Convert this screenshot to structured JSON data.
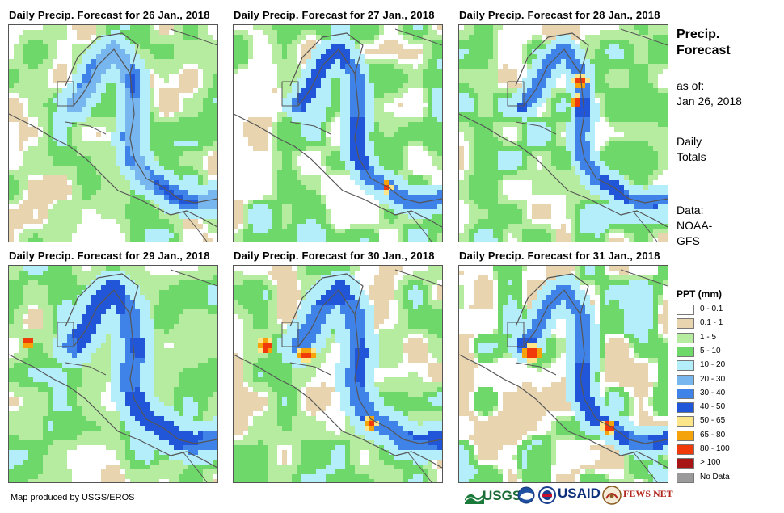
{
  "panels": [
    {
      "title": "Daily Precip. Forecast for 26 Jan., 2018"
    },
    {
      "title": "Daily Precip. Forecast for 27 Jan., 2018"
    },
    {
      "title": "Daily Precip. Forecast for 28 Jan., 2018"
    },
    {
      "title": "Daily Precip. Forecast for 29 Jan., 2018"
    },
    {
      "title": "Daily Precip. Forecast for 30 Jan., 2018"
    },
    {
      "title": "Daily Precip. Forecast for 31 Jan., 2018"
    }
  ],
  "info": {
    "title_line1": "Precip.",
    "title_line2": "Forecast",
    "asof_line1": "as of:",
    "asof_line2": "Jan 26, 2018",
    "totals_line1": "Daily",
    "totals_line2": "Totals",
    "data_line1": "Data:",
    "data_line2": "NOAA-",
    "data_line3": "GFS"
  },
  "legend": {
    "title": "PPT (mm)",
    "classes": [
      {
        "label": "0 - 0.1",
        "color": "#ffffff"
      },
      {
        "label": "0.1 - 1",
        "color": "#e8d5b0"
      },
      {
        "label": "1 - 5",
        "color": "#b6eca0"
      },
      {
        "label": "5 - 10",
        "color": "#6fd86a"
      },
      {
        "label": "10 - 20",
        "color": "#b4eefa"
      },
      {
        "label": "20 - 30",
        "color": "#78b6f0"
      },
      {
        "label": "30 - 40",
        "color": "#3f82e8"
      },
      {
        "label": "40 - 50",
        "color": "#2256d8"
      },
      {
        "label": "50 - 65",
        "color": "#fde68a"
      },
      {
        "label": "65 - 80",
        "color": "#f5a30a"
      },
      {
        "label": "80 - 100",
        "color": "#f03a0a"
      },
      {
        "label": "> 100",
        "color": "#a81515"
      },
      {
        "label": "No Data",
        "color": "#9a9a9a"
      }
    ]
  },
  "credit": "Map produced by USGS/EROS",
  "logos": {
    "usgs": "USGS",
    "usaid": "USAID",
    "fewsnet": "FEWS NET"
  }
}
